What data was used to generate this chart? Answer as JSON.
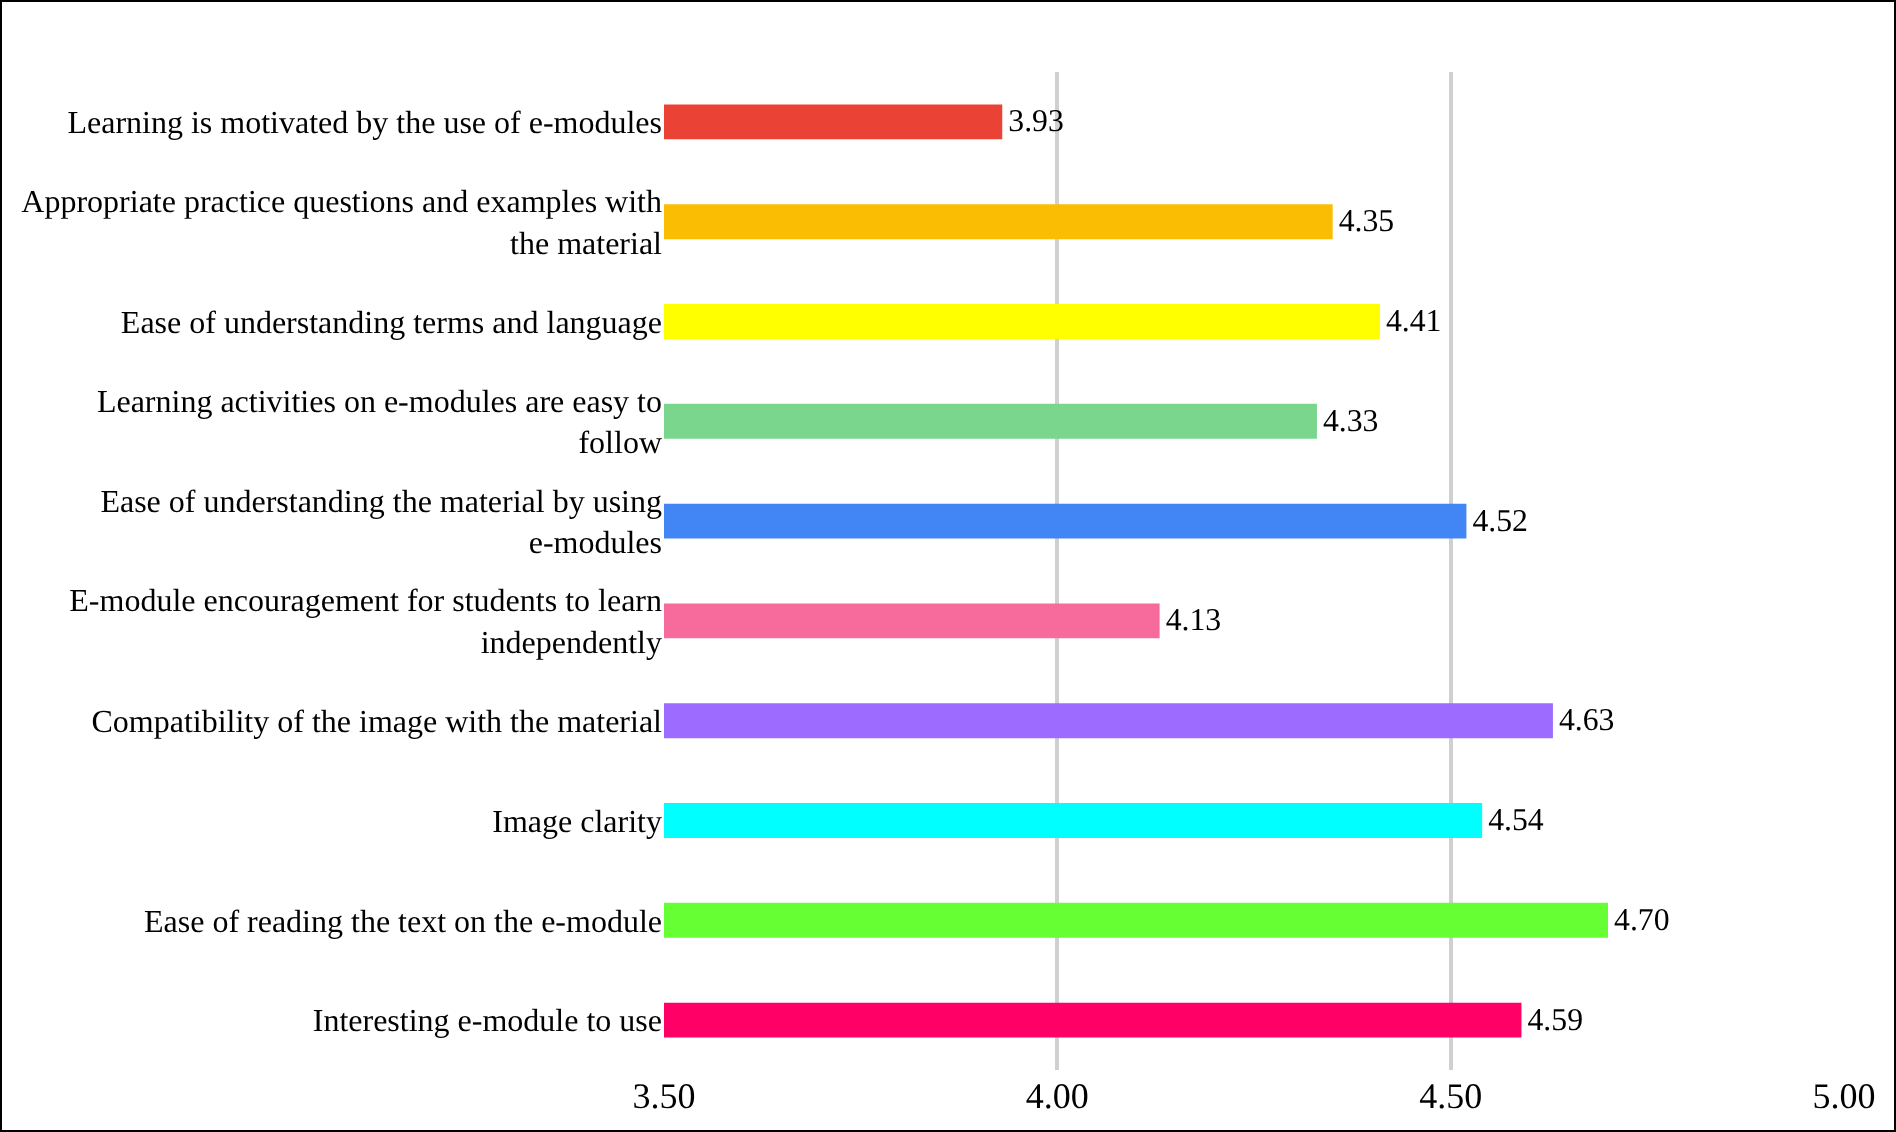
{
  "chart_data": {
    "type": "bar",
    "orientation": "horizontal",
    "categories": [
      "Learning is motivated by the use of e-modules",
      "Appropriate practice questions and examples with the material",
      "Ease of understanding terms and language",
      "Learning activities on e-modules are easy to follow",
      "Ease of understanding the material by using e-modules",
      "E-module encouragement for students to learn independently",
      "Compatibility of the image with the material",
      "Image clarity",
      "Ease of reading the text on the e-module",
      "Interesting e-module to use"
    ],
    "values": [
      3.93,
      4.35,
      4.41,
      4.33,
      4.52,
      4.13,
      4.63,
      4.54,
      4.7,
      4.59
    ],
    "value_labels": [
      "3.93",
      "4.35",
      "4.41",
      "4.33",
      "4.52",
      "4.13",
      "4.63",
      "4.54",
      "4.70",
      "4.59"
    ],
    "colors": [
      "#ea4335",
      "#fbbc04",
      "#ffff00",
      "#7bd68d",
      "#4285f4",
      "#f66b9b",
      "#9d6bff",
      "#00ffff",
      "#66ff33",
      "#ff0066"
    ],
    "xlim": [
      3.5,
      5.0
    ],
    "xticks": [
      {
        "value": 3.5,
        "label": "3.50"
      },
      {
        "value": 4.0,
        "label": "4.00"
      },
      {
        "value": 4.5,
        "label": "4.50"
      },
      {
        "value": 5.0,
        "label": "5.00"
      }
    ],
    "grid": "x"
  }
}
